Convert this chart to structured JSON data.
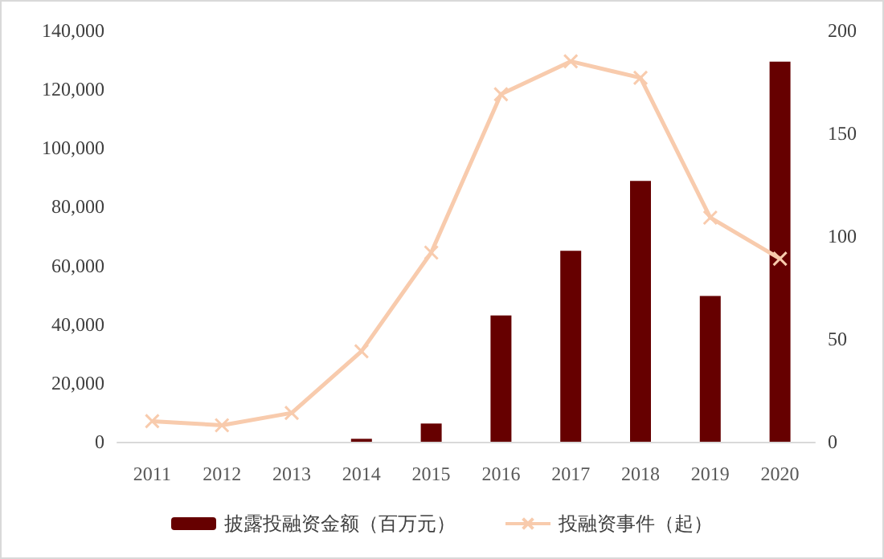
{
  "chart_data": {
    "type": "bar",
    "categories": [
      "2011",
      "2012",
      "2013",
      "2014",
      "2015",
      "2016",
      "2017",
      "2018",
      "2019",
      "2020"
    ],
    "series": [
      {
        "name": "披露投融资金额（百万元）",
        "color": "#660000",
        "values": [
          0,
          0,
          0,
          1000,
          6200,
          43000,
          65000,
          88800,
          49600,
          129400
        ]
      },
      {
        "name": "投融资事件（起）",
        "type": "line",
        "axis": "y2",
        "color": "#f8cbad",
        "marker": "cross",
        "values": [
          10,
          8,
          14,
          44,
          92,
          169,
          185,
          177,
          109,
          89
        ]
      }
    ],
    "ylim": [
      0,
      140000
    ],
    "yticks": [
      0,
      {
        "value": 20000,
        "label": "20,000"
      },
      {
        "value": 40000,
        "label": "40,000"
      },
      {
        "value": 60000,
        "label": "60,000"
      },
      {
        "value": 80000,
        "label": "80,000"
      },
      {
        "value": 100000,
        "label": "100,000"
      },
      {
        "value": 120000,
        "label": "120,000"
      },
      {
        "value": 140000,
        "label": "140,000"
      }
    ],
    "y2lim": [
      0,
      200
    ],
    "y2ticks": [
      0,
      50,
      100,
      150,
      200
    ],
    "grid": false,
    "legend": "bottom"
  }
}
